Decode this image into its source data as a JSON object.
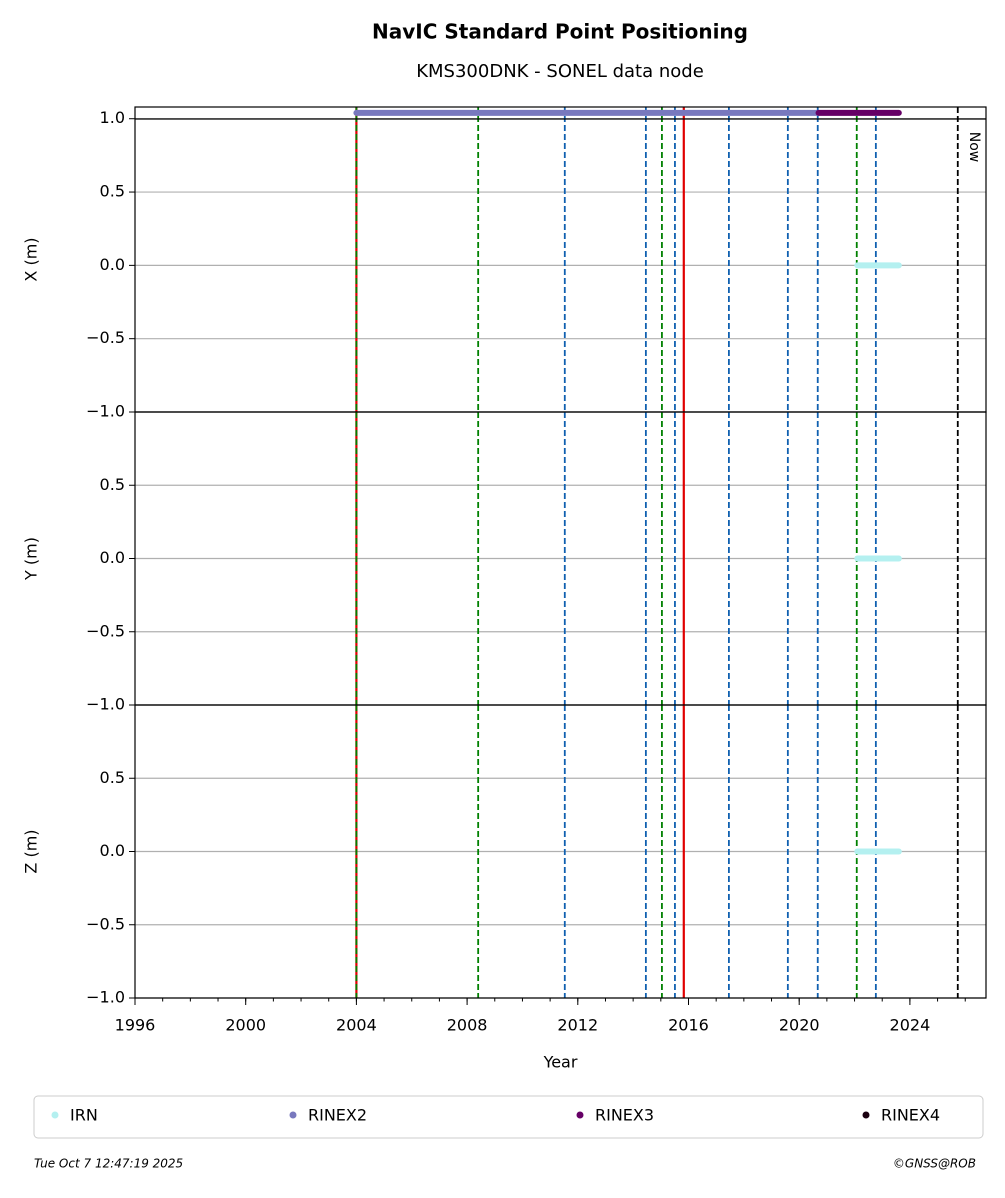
{
  "chart_data": [
    {
      "type": "line",
      "title": "NavIC Standard Point Positioning",
      "subtitle": "KMS300DNK - SONEL data node",
      "ylabel": "X (m)",
      "xlim": [
        1996,
        2026.75
      ],
      "ylim": [
        -1,
        1.08
      ],
      "yticks": [
        {
          "value": -1,
          "label": "−1.0"
        },
        {
          "value": -0.5,
          "label": "−0.5"
        },
        {
          "value": 0,
          "label": "0.0"
        },
        {
          "value": 0.5,
          "label": "0.5"
        },
        {
          "value": 1,
          "label": "1.0"
        }
      ],
      "grid": true,
      "series": [
        {
          "name": "IRN",
          "color": "#b4f0f0",
          "x": [
            2022.1,
            2023.6
          ],
          "values": [
            0,
            0
          ]
        },
        {
          "name": "RINEX2",
          "color": "#7878be",
          "x": [
            2004.0,
            2020.7
          ],
          "values": [
            1.04,
            1.04
          ]
        },
        {
          "name": "RINEX3",
          "color": "#660066",
          "x": [
            2020.7,
            2023.6
          ],
          "values": [
            1.04,
            1.04
          ]
        },
        {
          "name": "RINEX4",
          "color": "#1a0010",
          "x": [],
          "values": []
        }
      ],
      "vlines": [
        {
          "x": 2004.0,
          "color": "#e00000",
          "dash": false
        },
        {
          "x": 2004.0,
          "color": "#008000",
          "dash": true
        },
        {
          "x": 2008.4,
          "color": "#008000",
          "dash": true
        },
        {
          "x": 2011.53,
          "color": "#1060b0",
          "dash": true
        },
        {
          "x": 2014.46,
          "color": "#1060b0",
          "dash": true
        },
        {
          "x": 2015.04,
          "color": "#008000",
          "dash": true
        },
        {
          "x": 2015.51,
          "color": "#1060b0",
          "dash": true
        },
        {
          "x": 2015.83,
          "color": "#e00000",
          "dash": false
        },
        {
          "x": 2017.46,
          "color": "#1060b0",
          "dash": true
        },
        {
          "x": 2019.59,
          "color": "#1060b0",
          "dash": true
        },
        {
          "x": 2020.67,
          "color": "#1060b0",
          "dash": true
        },
        {
          "x": 2022.08,
          "color": "#008000",
          "dash": true
        },
        {
          "x": 2022.77,
          "color": "#1060b0",
          "dash": true
        },
        {
          "x": 2025.73,
          "color": "#000000",
          "dash": true
        }
      ],
      "annotation": {
        "text": "Now",
        "x": 2025.73
      }
    },
    {
      "type": "line",
      "ylabel": "Y (m)",
      "xlim": [
        1996,
        2026.75
      ],
      "ylim": [
        -1,
        1
      ],
      "yticks": [
        {
          "value": -1,
          "label": "−1.0"
        },
        {
          "value": -0.5,
          "label": "−0.5"
        },
        {
          "value": 0,
          "label": "0.0"
        },
        {
          "value": 0.5,
          "label": "0.5"
        }
      ],
      "grid": true,
      "series": [
        {
          "color": "#b4f0f0",
          "x": [
            2022.1,
            2023.6
          ],
          "values": [
            0,
            0
          ]
        }
      ]
    },
    {
      "type": "line",
      "ylabel": "Z (m)",
      "xlabel": "Year",
      "xlim": [
        1996,
        2026.75
      ],
      "ylim": [
        -1,
        1
      ],
      "yticks": [
        {
          "value": -1,
          "label": "−1.0"
        },
        {
          "value": -0.5,
          "label": "−0.5"
        },
        {
          "value": 0,
          "label": "0.0"
        },
        {
          "value": 0.5,
          "label": "0.5"
        }
      ],
      "xticks": [
        1996,
        2000,
        2004,
        2008,
        2012,
        2016,
        2020,
        2024
      ],
      "xminor_step": 1,
      "grid": true,
      "series": [
        {
          "color": "#b4f0f0",
          "x": [
            2022.1,
            2023.6
          ],
          "values": [
            0,
            0
          ]
        }
      ]
    }
  ],
  "footer": {
    "date": "Tue Oct  7 12:47:19 2025",
    "credit": "©GNSS@ROB"
  }
}
